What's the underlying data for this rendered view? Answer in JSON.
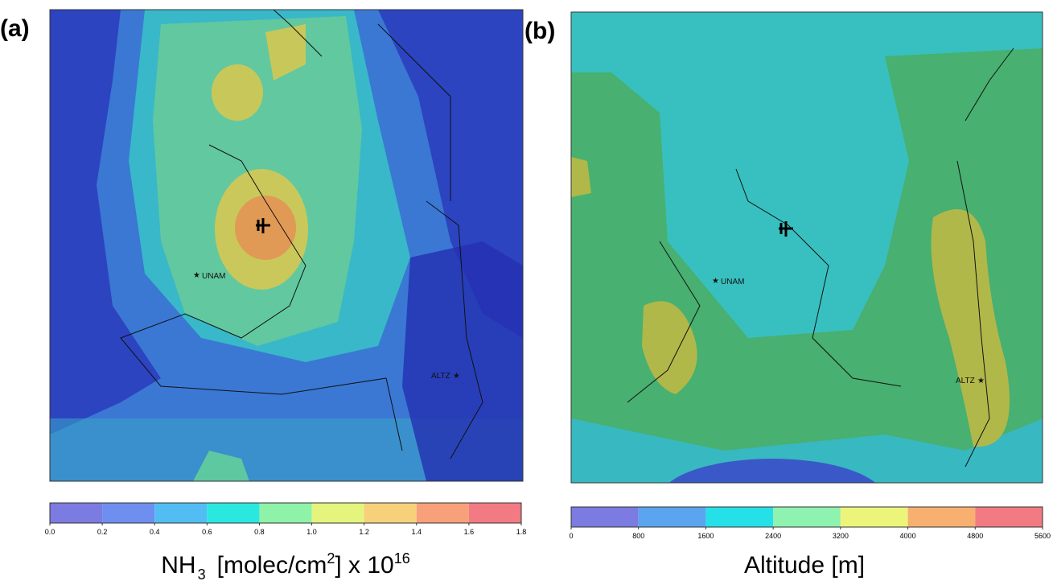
{
  "chart_data": [
    {
      "type": "map",
      "panel_label": "(a)",
      "annotations": [
        "UNAM",
        "ALTZ"
      ],
      "colorbar": {
        "xlim": [
          0,
          1.8
        ],
        "xticks": [
          {
            "value": 0,
            "label": "0.0"
          },
          0.2,
          0.4,
          0.6,
          0.8,
          {
            "value": 1,
            "label": "1.0"
          },
          1.2,
          1.4,
          1.6,
          1.8
        ],
        "colors": [
          "#7b7be2",
          "#6e8ff0",
          "#52bdf2",
          "#2ae8e0",
          "#8ef2a8",
          "#e4f47c",
          "#f7d07a",
          "#f7a07a",
          "#f27a82"
        ],
        "label": [
          "NH",
          "3",
          "[molec/cm",
          "2",
          "] x 10",
          "16"
        ]
      }
    },
    {
      "type": "map",
      "panel_label": "(b)",
      "annotations": [
        "UNAM",
        "ALTZ"
      ],
      "colorbar": {
        "xlim": [
          0,
          5600
        ],
        "xticks": [
          0,
          800,
          1600,
          2400,
          3200,
          4000,
          4800,
          5600
        ],
        "colors": [
          "#7b7be2",
          "#5aa4f0",
          "#26e0e8",
          "#8ef2b0",
          "#ecf47a",
          "#f7b070",
          "#f27a82"
        ],
        "label": [
          "Altitude [m]"
        ]
      }
    }
  ]
}
